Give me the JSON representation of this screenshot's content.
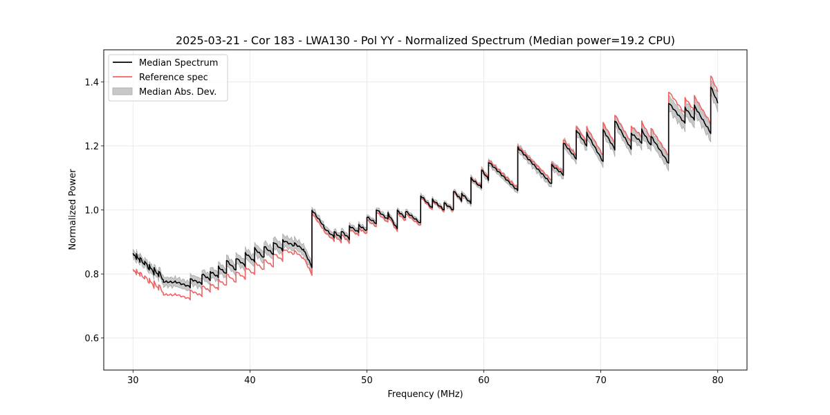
{
  "chart_data": {
    "type": "line",
    "title": "2025-03-21 - Cor 183 - LWA130 - Pol YY - Normalized Spectrum (Median power=19.2 CPU)",
    "xlabel": "Frequency (MHz)",
    "ylabel": "Normalized Power",
    "xlim": [
      27.5,
      82.5
    ],
    "ylim": [
      0.5,
      1.5
    ],
    "xticks": [
      30,
      40,
      50,
      60,
      70,
      80
    ],
    "xtick_labels": [
      "30",
      "40",
      "50",
      "60",
      "70",
      "80"
    ],
    "yticks": [
      0.6,
      0.8,
      1.0,
      1.2,
      1.4
    ],
    "ytick_labels": [
      "0.6",
      "0.8",
      "1.0",
      "1.2",
      "1.4"
    ],
    "grid": true,
    "legend": {
      "placement": "top-left",
      "entries": [
        {
          "label": "Median Spectrum",
          "kind": "line",
          "color": "#000000"
        },
        {
          "label": "Reference spec",
          "kind": "line",
          "color": "#f06262"
        },
        {
          "label": "Median Abs. Dev.",
          "kind": "band",
          "color": "#c8c8c8"
        }
      ]
    },
    "series_note": "Sawtooth segments: each entry [f_start, f_end, median_start, median_end, ref_start, ref_end, mad]",
    "segments": [
      [
        30.0,
        30.3,
        0.865,
        0.848,
        0.815,
        0.8,
        0.012
      ],
      [
        30.3,
        30.6,
        0.86,
        0.838,
        0.812,
        0.795,
        0.012
      ],
      [
        30.6,
        31.0,
        0.852,
        0.826,
        0.806,
        0.782,
        0.012
      ],
      [
        31.0,
        31.4,
        0.842,
        0.812,
        0.797,
        0.77,
        0.013
      ],
      [
        31.4,
        31.8,
        0.828,
        0.8,
        0.785,
        0.758,
        0.013
      ],
      [
        31.8,
        32.2,
        0.818,
        0.792,
        0.776,
        0.75,
        0.013
      ],
      [
        32.2,
        32.6,
        0.81,
        0.778,
        0.768,
        0.738,
        0.013
      ],
      [
        32.6,
        33.6,
        0.776,
        0.774,
        0.736,
        0.734,
        0.014
      ],
      [
        33.6,
        34.9,
        0.776,
        0.76,
        0.737,
        0.722,
        0.014
      ],
      [
        34.9,
        35.9,
        0.784,
        0.77,
        0.748,
        0.732,
        0.015
      ],
      [
        35.9,
        36.6,
        0.8,
        0.782,
        0.763,
        0.746,
        0.015
      ],
      [
        36.6,
        37.3,
        0.808,
        0.79,
        0.77,
        0.752,
        0.015
      ],
      [
        37.3,
        38.0,
        0.822,
        0.8,
        0.782,
        0.763,
        0.015
      ],
      [
        38.0,
        38.8,
        0.842,
        0.812,
        0.8,
        0.774,
        0.016
      ],
      [
        38.8,
        39.6,
        0.85,
        0.826,
        0.808,
        0.786,
        0.016
      ],
      [
        39.6,
        40.4,
        0.866,
        0.838,
        0.822,
        0.798,
        0.016
      ],
      [
        40.4,
        41.2,
        0.88,
        0.85,
        0.838,
        0.812,
        0.017
      ],
      [
        41.2,
        42.0,
        0.886,
        0.862,
        0.845,
        0.823,
        0.017
      ],
      [
        42.0,
        42.8,
        0.9,
        0.874,
        0.865,
        0.842,
        0.017
      ],
      [
        42.8,
        43.8,
        0.905,
        0.888,
        0.878,
        0.862,
        0.017
      ],
      [
        43.8,
        44.6,
        0.896,
        0.875,
        0.872,
        0.848,
        0.016
      ],
      [
        44.6,
        45.3,
        0.875,
        0.822,
        0.85,
        0.798,
        0.016
      ],
      [
        45.3,
        46.3,
        1.0,
        0.95,
        0.99,
        0.938,
        0.01
      ],
      [
        46.3,
        47.2,
        0.945,
        0.915,
        0.934,
        0.904,
        0.01
      ],
      [
        47.2,
        47.8,
        0.932,
        0.912,
        0.92,
        0.9,
        0.009
      ],
      [
        47.8,
        48.5,
        0.935,
        0.91,
        0.924,
        0.898,
        0.009
      ],
      [
        48.5,
        49.3,
        0.95,
        0.93,
        0.94,
        0.92,
        0.009
      ],
      [
        49.3,
        50.0,
        0.952,
        0.935,
        0.942,
        0.925,
        0.008
      ],
      [
        50.0,
        50.8,
        0.978,
        0.958,
        0.968,
        0.948,
        0.008
      ],
      [
        50.8,
        51.8,
        1.002,
        0.97,
        0.994,
        0.96,
        0.008
      ],
      [
        51.8,
        52.6,
        0.99,
        0.94,
        0.982,
        0.932,
        0.008
      ],
      [
        52.6,
        53.3,
        0.998,
        0.975,
        0.99,
        0.966,
        0.007
      ],
      [
        53.3,
        54.6,
        0.996,
        0.958,
        0.988,
        0.95,
        0.007
      ],
      [
        54.6,
        55.6,
        1.045,
        1.005,
        1.04,
        1.0,
        0.007
      ],
      [
        55.6,
        56.6,
        1.032,
        1.0,
        1.028,
        0.996,
        0.007
      ],
      [
        56.6,
        57.4,
        1.022,
        1.0,
        1.02,
        0.998,
        0.007
      ],
      [
        57.4,
        58.1,
        1.06,
        1.03,
        1.058,
        1.028,
        0.007
      ],
      [
        58.1,
        58.9,
        1.052,
        1.02,
        1.05,
        1.022,
        0.008
      ],
      [
        58.9,
        59.8,
        1.098,
        1.07,
        1.1,
        1.074,
        0.008
      ],
      [
        59.8,
        60.4,
        1.125,
        1.095,
        1.128,
        1.1,
        0.009
      ],
      [
        60.4,
        62.9,
        1.15,
        1.06,
        1.156,
        1.068,
        0.01
      ],
      [
        62.9,
        65.8,
        1.195,
        1.08,
        1.2,
        1.092,
        0.012
      ],
      [
        65.8,
        66.8,
        1.14,
        1.11,
        1.146,
        1.118,
        0.013
      ],
      [
        66.8,
        67.9,
        1.21,
        1.16,
        1.22,
        1.17,
        0.014
      ],
      [
        67.9,
        68.8,
        1.25,
        1.2,
        1.262,
        1.212,
        0.015
      ],
      [
        68.8,
        70.2,
        1.24,
        1.15,
        1.258,
        1.17,
        0.016
      ],
      [
        70.2,
        71.2,
        1.25,
        1.19,
        1.272,
        1.208,
        0.017
      ],
      [
        71.2,
        72.6,
        1.28,
        1.19,
        1.298,
        1.21,
        0.018
      ],
      [
        72.6,
        73.5,
        1.24,
        1.21,
        1.262,
        1.23,
        0.018
      ],
      [
        73.5,
        74.3,
        1.25,
        1.2,
        1.275,
        1.222,
        0.019
      ],
      [
        74.3,
        75.8,
        1.23,
        1.145,
        1.255,
        1.17,
        0.02
      ],
      [
        75.8,
        77.2,
        1.335,
        1.27,
        1.37,
        1.3,
        0.023
      ],
      [
        77.2,
        78.0,
        1.32,
        1.28,
        1.35,
        1.31,
        0.023
      ],
      [
        78.0,
        79.4,
        1.325,
        1.24,
        1.355,
        1.27,
        0.024
      ],
      [
        79.4,
        80.0,
        1.385,
        1.335,
        1.42,
        1.37,
        0.025
      ]
    ]
  }
}
